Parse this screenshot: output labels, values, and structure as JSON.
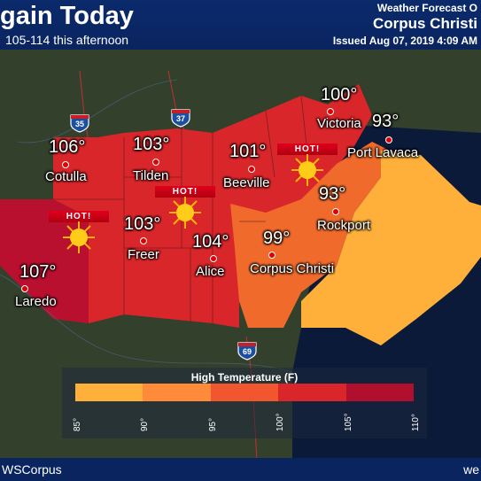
{
  "header": {
    "title": "gain Today",
    "subtitle": "105-114 this afternoon",
    "right_top": "Weather Forecast O",
    "office": "Corpus Christi",
    "issued": "Issued Aug 07, 2019 4:09 AM"
  },
  "footer": {
    "left": "WSCorpus",
    "right": "we"
  },
  "hot_label": "HOT!",
  "cities": [
    {
      "name": "Cotulla",
      "temp": "106°"
    },
    {
      "name": "Laredo",
      "temp": "107°"
    },
    {
      "name": "Tilden",
      "temp": "103°"
    },
    {
      "name": "Freer",
      "temp": "103°"
    },
    {
      "name": "Alice",
      "temp": "104°"
    },
    {
      "name": "Beeville",
      "temp": "101°"
    },
    {
      "name": "Corpus Christi",
      "temp": "99°"
    },
    {
      "name": "Victoria",
      "temp": "100°"
    },
    {
      "name": "Port Lavaca",
      "temp": "93°"
    },
    {
      "name": "Rockport",
      "temp": "93°"
    }
  ],
  "highways": [
    "35",
    "37",
    "69"
  ],
  "legend": {
    "title": "High Temperature (F)",
    "ticks": [
      "85°",
      "90°",
      "95°",
      "100°",
      "105°",
      "110°"
    ],
    "colors": [
      "#ffb03a",
      "#ff8a3a",
      "#f2562e",
      "#d8262a",
      "#b0102e"
    ]
  }
}
